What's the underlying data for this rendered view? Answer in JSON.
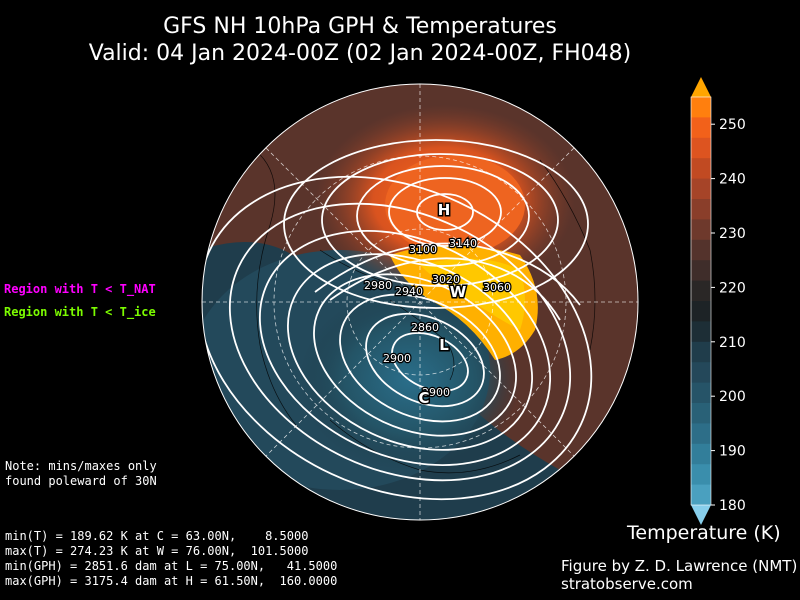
{
  "title": {
    "line1": "GFS NH 10hPa GPH & Temperatures",
    "line2": "Valid: 04 Jan 2024-00Z  (02 Jan 2024-00Z, FH048)"
  },
  "legend_labels": {
    "nat": "Region with T < T_NAT",
    "ice": "Region with T < T_ice"
  },
  "note": [
    "Note: mins/maxes only",
    "found poleward of 30N"
  ],
  "stats": [
    "min(T) = 189.62 K at C = 63.00N,    8.5000",
    "max(T) = 274.23 K at W = 76.00N,  101.5000",
    "min(GPH) = 2851.6 dam at L = 75.00N,   41.5000",
    "max(GPH) = 3175.4 dam at H = 61.50N,  160.0000"
  ],
  "credit": {
    "line1": "Figure by Z. D. Lawrence (NMT)",
    "line2": "stratobserve.com"
  },
  "colorbar": {
    "title": "Temperature (K)",
    "ticks": [
      "250",
      "240",
      "230",
      "220",
      "210",
      "200",
      "190",
      "180"
    ],
    "colors": [
      "#ff7f0e",
      "#f2611a",
      "#dd5420",
      "#c14a22",
      "#a64428",
      "#8a3e2a",
      "#6e392c",
      "#54332c",
      "#3f2d2a",
      "#2a2726",
      "#1d2326",
      "#1d2e36",
      "#203d4b",
      "#24485a",
      "#265468",
      "#296177",
      "#2d6e88",
      "#327e9a",
      "#3a8eac",
      "#4aa0bf"
    ],
    "top_arrow_color": "#ffa500",
    "bottom_arrow_color": "#87ceeb"
  },
  "markers": {
    "high": "H",
    "low": "L",
    "warm": "W",
    "cold": "C"
  },
  "contour_labels": [
    "3100",
    "3140",
    "3020",
    "3060",
    "2980",
    "2940",
    "2860",
    "2900",
    "2900"
  ]
}
